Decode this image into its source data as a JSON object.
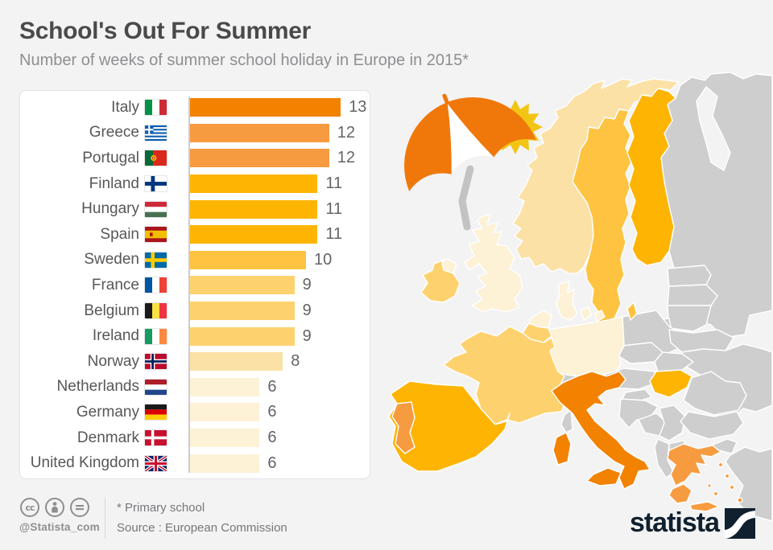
{
  "header": {
    "title": "School's Out For Summer",
    "subtitle": "Number of weeks of summer school holiday in Europe in 2015*"
  },
  "chart_data": {
    "type": "bar",
    "orientation": "horizontal",
    "title": "School's Out For Summer",
    "subtitle": "Number of weeks of summer school holiday in Europe in 2015*",
    "unit": "weeks",
    "categories": [
      "Italy",
      "Greece",
      "Portugal",
      "Finland",
      "Hungary",
      "Spain",
      "Sweden",
      "France",
      "Belgium",
      "Ireland",
      "Norway",
      "Netherlands",
      "Germany",
      "Denmark",
      "United Kingdom"
    ],
    "values": [
      13,
      12,
      12,
      11,
      11,
      11,
      10,
      9,
      9,
      9,
      8,
      6,
      6,
      6,
      6
    ],
    "xlim": [
      0,
      13
    ],
    "grid": false,
    "value_labels": true
  },
  "countries": [
    {
      "name": "Italy",
      "flag": "it",
      "weeks": 13
    },
    {
      "name": "Greece",
      "flag": "gr",
      "weeks": 12
    },
    {
      "name": "Portugal",
      "flag": "pt",
      "weeks": 12
    },
    {
      "name": "Finland",
      "flag": "fi",
      "weeks": 11
    },
    {
      "name": "Hungary",
      "flag": "hu",
      "weeks": 11
    },
    {
      "name": "Spain",
      "flag": "es",
      "weeks": 11
    },
    {
      "name": "Sweden",
      "flag": "se",
      "weeks": 10
    },
    {
      "name": "France",
      "flag": "fr",
      "weeks": 9
    },
    {
      "name": "Belgium",
      "flag": "be",
      "weeks": 9
    },
    {
      "name": "Ireland",
      "flag": "ie",
      "weeks": 9
    },
    {
      "name": "Norway",
      "flag": "no",
      "weeks": 8
    },
    {
      "name": "Netherlands",
      "flag": "nl",
      "weeks": 6
    },
    {
      "name": "Germany",
      "flag": "de",
      "weeks": 6
    },
    {
      "name": "Denmark",
      "flag": "dk",
      "weeks": 6
    },
    {
      "name": "United Kingdom",
      "flag": "gb",
      "weeks": 6
    }
  ],
  "colors": {
    "13": "#f28200",
    "12": "#f79b41",
    "11": "#feb402",
    "10": "#fec441",
    "9": "#fdd26e",
    "8": "#fbe1a6",
    "6": "#fdf1d6",
    "other": "#cecece",
    "sea": "#f3f3f4",
    "umbrella": "#f0780a",
    "sun": "#f2c515",
    "pole": "#c3c3c4",
    "logo_navy": "#10202e"
  },
  "map": {
    "values": {
      "no": 8,
      "se": 10,
      "fi": 11,
      "dk": 6,
      "gb": 6,
      "ie": 9,
      "nl": 6,
      "be": 9,
      "de": 6,
      "fr": 9,
      "es": 11,
      "pt": 12,
      "it": 13,
      "hu": 11,
      "gr": 12
    }
  },
  "footer": {
    "note": "* Primary school",
    "source": "Source : European Commission",
    "handle": "@Statista_com",
    "logo_text": "statista"
  },
  "icons": [
    "cc-icon",
    "cc-attribution-icon",
    "cc-nd-icon",
    "beach-umbrella-icon",
    "sun-icon",
    "statista-logo-icon"
  ]
}
